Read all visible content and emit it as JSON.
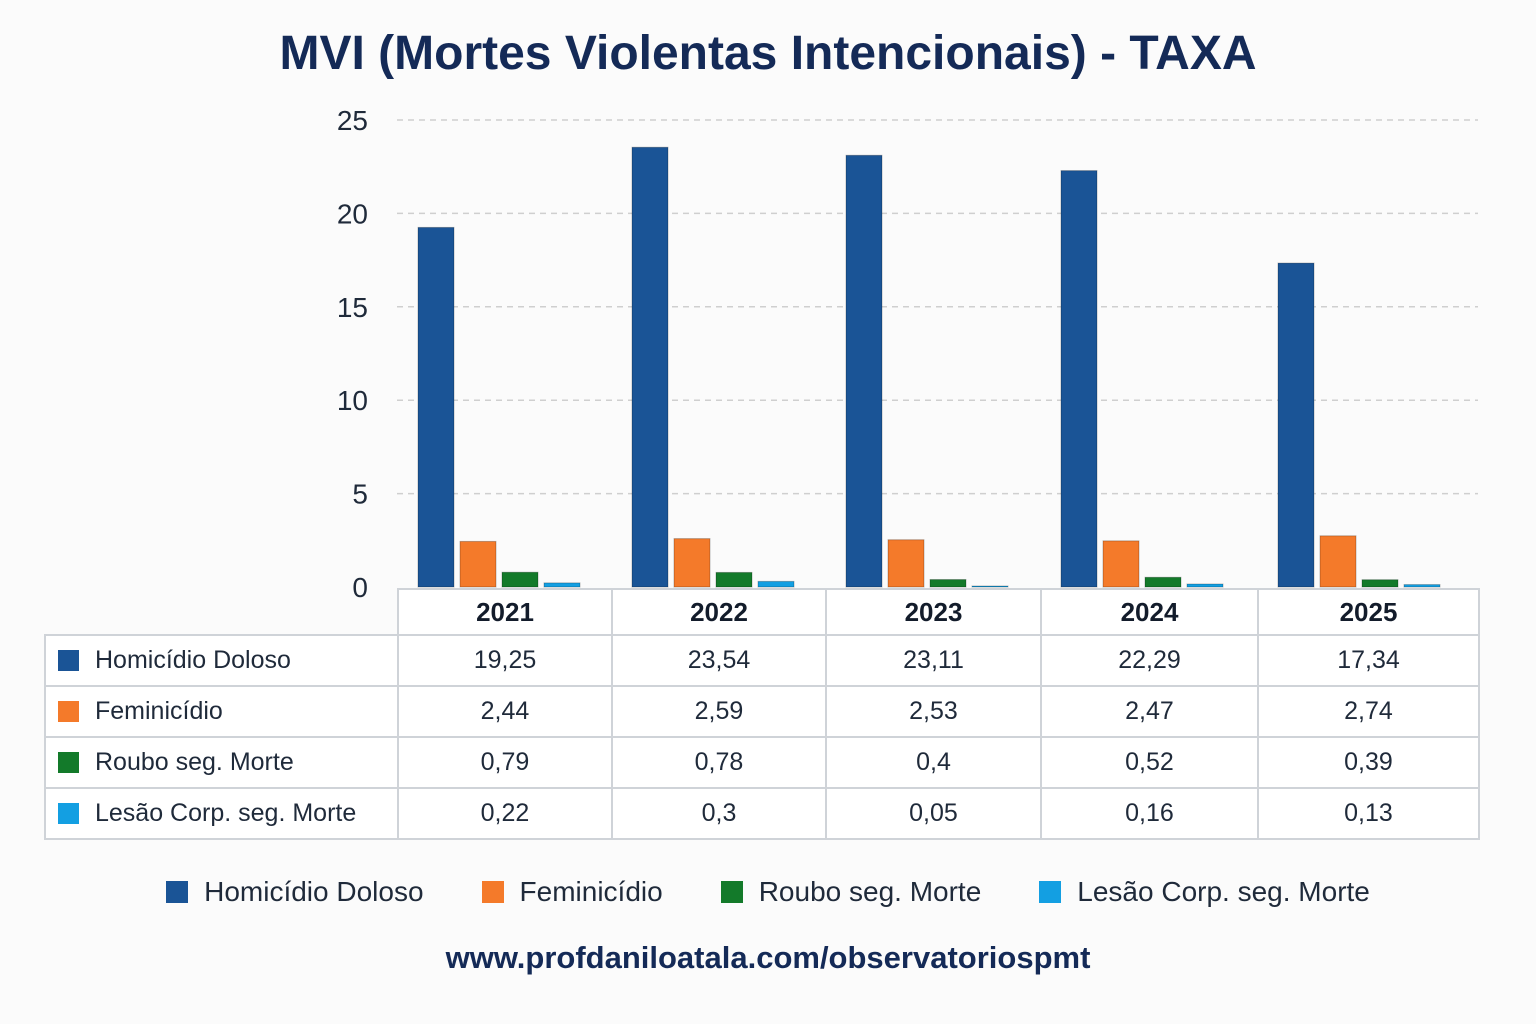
{
  "chart_data": {
    "type": "bar",
    "title": "MVI (Mortes Violentas Intencionais) - TAXA",
    "categories": [
      "2021",
      "2022",
      "2023",
      "2024",
      "2025"
    ],
    "ylim": [
      0,
      25
    ],
    "yticks": [
      "0",
      "5",
      "10",
      "15",
      "20",
      "25"
    ],
    "grid": true,
    "legend_position": "bottom",
    "series": [
      {
        "name": "Homicídio Doloso",
        "color": "#1a5496",
        "values": [
          19.25,
          23.54,
          23.11,
          22.29,
          17.34
        ],
        "labels": [
          "19,25",
          "23,54",
          "23,11",
          "22,29",
          "17,34"
        ]
      },
      {
        "name": "Feminicídio",
        "color": "#f47a2a",
        "values": [
          2.44,
          2.59,
          2.53,
          2.47,
          2.74
        ],
        "labels": [
          "2,44",
          "2,59",
          "2,53",
          "2,47",
          "2,74"
        ]
      },
      {
        "name": "Roubo seg. Morte",
        "color": "#137a2a",
        "values": [
          0.79,
          0.78,
          0.4,
          0.52,
          0.39
        ],
        "labels": [
          "0,79",
          "0,78",
          "0,4",
          "0,52",
          "0,39"
        ]
      },
      {
        "name": "Lesão Corp. seg. Morte",
        "color": "#139fe2",
        "values": [
          0.22,
          0.3,
          0.05,
          0.16,
          0.13
        ],
        "labels": [
          "0,22",
          "0,3",
          "0,05",
          "0,16",
          "0,13"
        ]
      }
    ]
  },
  "source_url": "www.profdaniloatala.com/observatoriospmt"
}
